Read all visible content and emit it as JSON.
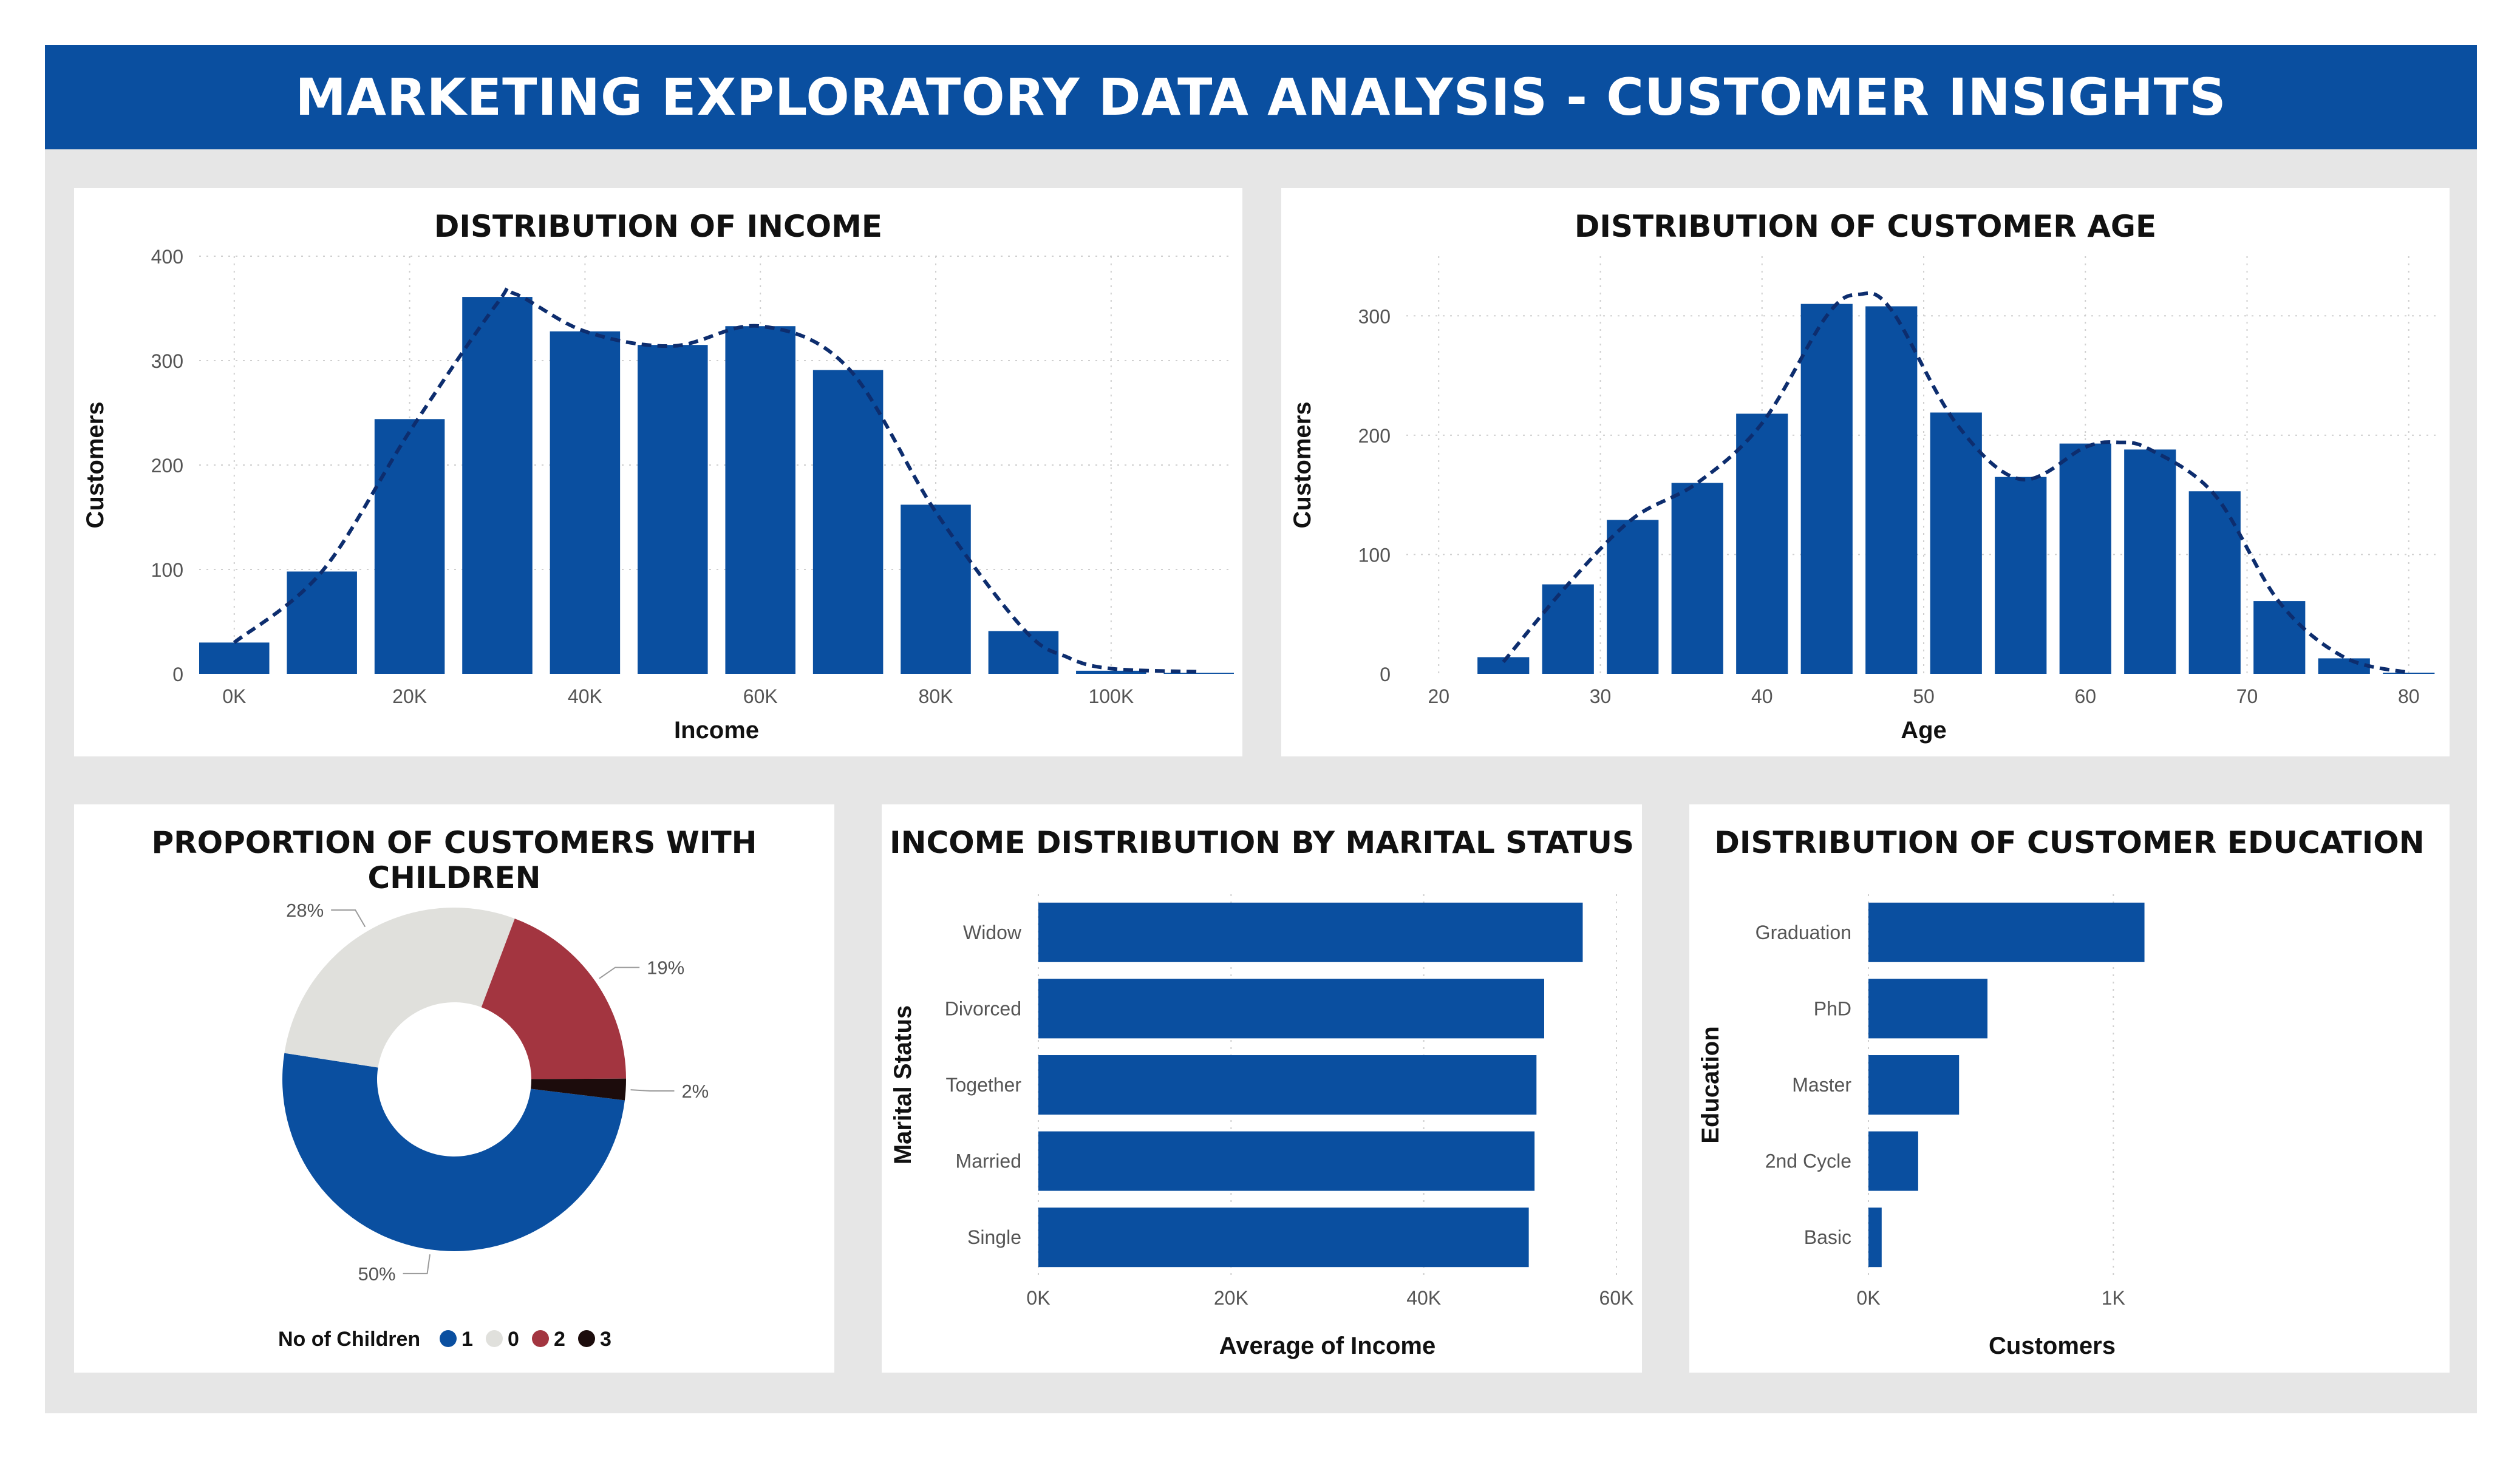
{
  "header": {
    "title": "MARKETING EXPLORATORY DATA ANALYSIS - CUSTOMER INSIGHTS"
  },
  "colors": {
    "primary": "#0a4fa0",
    "header": "#0a4fa0",
    "curve": "#0d2d6e",
    "background": "#e6e6e6",
    "panel": "#ffffff",
    "grid": "#cfcfcf"
  },
  "chart_data": [
    {
      "id": "income",
      "type": "bar",
      "title": "DISTRIBUTION OF INCOME",
      "xlabel": "Income",
      "ylabel": "Customers",
      "bin_width": 10000,
      "x": [
        0,
        10000,
        20000,
        30000,
        40000,
        50000,
        60000,
        70000,
        80000,
        90000,
        100000,
        110000
      ],
      "values": [
        30,
        98,
        244,
        361,
        328,
        315,
        333,
        291,
        162,
        41,
        3,
        1
      ],
      "xlim": [
        -4000,
        114000
      ],
      "ylim": [
        0,
        400
      ],
      "xticks": [
        0,
        20000,
        40000,
        60000,
        80000,
        100000
      ],
      "xtick_labels": [
        "0K",
        "20K",
        "40K",
        "60K",
        "80K",
        "100K"
      ],
      "yticks": [
        0,
        100,
        200,
        300,
        400
      ],
      "ytick_labels": [
        "0",
        "100",
        "200",
        "300",
        "400"
      ],
      "grid": true,
      "curve": {
        "style": "dashed",
        "x": [
          0,
          10000,
          20000,
          30000,
          32000,
          40000,
          50000,
          60000,
          70000,
          80000,
          90000,
          95000,
          100000,
          110000
        ],
        "y": [
          30,
          98,
          232,
          355,
          364,
          328,
          314,
          333,
          293,
          155,
          43,
          16,
          5,
          2
        ]
      }
    },
    {
      "id": "age",
      "type": "bar",
      "title": "DISTRIBUTION OF CUSTOMER AGE",
      "xlabel": "Age",
      "ylabel": "Customers",
      "bin_width": 4,
      "x": [
        24,
        28,
        32,
        36,
        40,
        44,
        48,
        52,
        56,
        60,
        64,
        68,
        72,
        76,
        80
      ],
      "values": [
        14,
        75,
        129,
        160,
        218,
        310,
        308,
        219,
        165,
        193,
        188,
        153,
        61,
        13,
        1
      ],
      "xlim": [
        18,
        82
      ],
      "ylim": [
        0,
        350
      ],
      "xticks": [
        20,
        30,
        40,
        50,
        60,
        70,
        80
      ],
      "xtick_labels": [
        "20",
        "30",
        "40",
        "50",
        "60",
        "70",
        "80"
      ],
      "yticks": [
        0,
        100,
        200,
        300
      ],
      "ytick_labels": [
        "0",
        "100",
        "200",
        "300"
      ],
      "grid": true,
      "curve": {
        "style": "dashed",
        "x": [
          24,
          28,
          32,
          36,
          40,
          44,
          46,
          48,
          52,
          56,
          60,
          62,
          64,
          68,
          72,
          76,
          80
        ],
        "y": [
          10,
          75,
          130,
          160,
          210,
          300,
          318,
          305,
          210,
          163,
          190,
          194,
          188,
          150,
          60,
          14,
          1
        ]
      }
    },
    {
      "id": "children",
      "type": "pie",
      "title": "PROPORTION OF CUSTOMERS WITH CHILDREN",
      "legend_title": "No of Children",
      "legend_position": "bottom",
      "slices": [
        {
          "label": "1",
          "value": 50,
          "pct_label": "50%",
          "color": "#0a4fa0"
        },
        {
          "label": "0",
          "value": 28,
          "pct_label": "28%",
          "color": "#e0e0dc"
        },
        {
          "label": "2",
          "value": 19,
          "pct_label": "19%",
          "color": "#a33540"
        },
        {
          "label": "3",
          "value": 2,
          "pct_label": "2%",
          "color": "#1c0c0c"
        }
      ]
    },
    {
      "id": "marital",
      "type": "bar",
      "orientation": "horizontal",
      "title": "INCOME DISTRIBUTION BY MARITAL STATUS",
      "xlabel": "Average of Income",
      "ylabel": "Marital Status",
      "categories": [
        "Widow",
        "Divorced",
        "Together",
        "Married",
        "Single"
      ],
      "values": [
        56500,
        52500,
        51700,
        51500,
        50900
      ],
      "xlim": [
        0,
        60000
      ],
      "xticks": [
        0,
        20000,
        40000,
        60000
      ],
      "xtick_labels": [
        "0K",
        "20K",
        "40K",
        "60K"
      ],
      "grid": true
    },
    {
      "id": "education",
      "type": "bar",
      "orientation": "horizontal",
      "title": "DISTRIBUTION OF CUSTOMER EDUCATION",
      "xlabel": "Customers",
      "ylabel": "Education",
      "categories": [
        "Graduation",
        "PhD",
        "Master",
        "2nd Cycle",
        "Basic"
      ],
      "values": [
        1127,
        486,
        370,
        203,
        54
      ],
      "xlim": [
        0,
        1500
      ],
      "xticks": [
        0,
        1000
      ],
      "xtick_labels": [
        "0K",
        "1K"
      ],
      "grid": true
    }
  ]
}
